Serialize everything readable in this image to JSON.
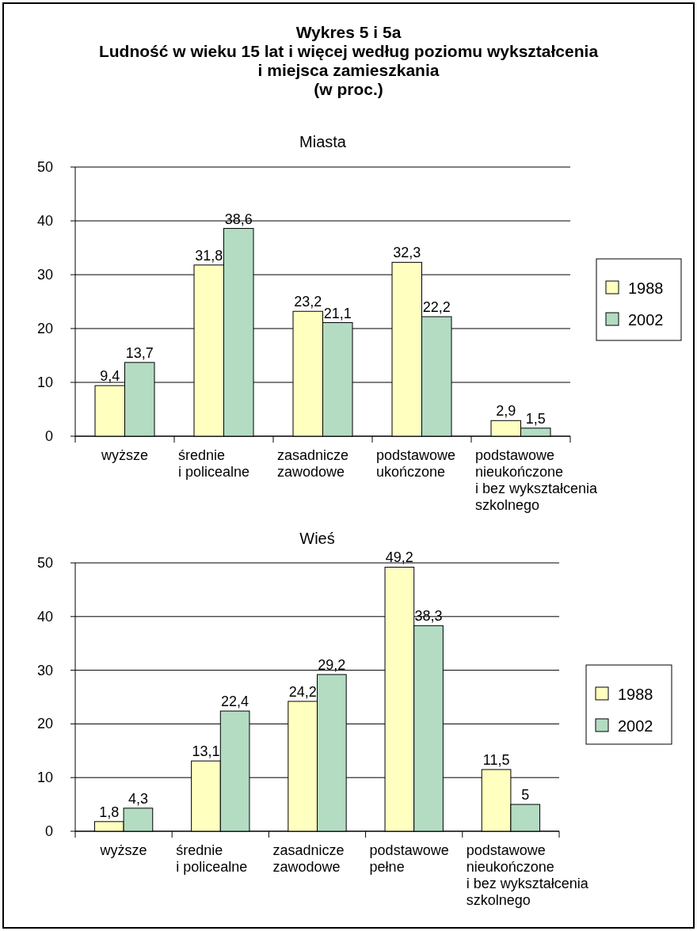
{
  "chart_data": [
    {
      "type": "bar",
      "title": "Wykres 5 i 5a\nLudność w wieku 15 lat i więcej według poziomu wykształcenia\ni miejsca zamieszkania\n(w proc.)",
      "subtitle": "Miasta",
      "categories": [
        "wyższe",
        "średnie\ni policealne",
        "zasadnicze\nzawodowe",
        "podstawowe\nukończone",
        "podstawowe\nnieukończone\ni bez wykształcenia\nszkolnego"
      ],
      "series": [
        {
          "name": "1988",
          "color": "#ffffc0",
          "values": [
            9.4,
            31.8,
            23.2,
            32.3,
            2.9
          ],
          "value_labels": [
            "9,4",
            "31,8",
            "23,2",
            "32,3",
            "2,9"
          ]
        },
        {
          "name": "2002",
          "color": "#b3dcc3",
          "values": [
            13.7,
            38.6,
            21.1,
            22.2,
            1.5
          ],
          "value_labels": [
            "13,7",
            "38,6",
            "21,1",
            "22,2",
            "1,5"
          ]
        }
      ],
      "ylim": [
        0,
        50
      ],
      "yticks": [
        0,
        10,
        20,
        30,
        40,
        50
      ],
      "grid": "y",
      "legend": "right"
    },
    {
      "type": "bar",
      "subtitle": "Wieś",
      "categories": [
        "wyższe",
        "średnie\ni policealne",
        "zasadnicze\nzawodowe",
        "podstawowe\npełne",
        "podstawowe\nnieukończone\ni bez wykształcenia\nszkolnego"
      ],
      "series": [
        {
          "name": "1988",
          "color": "#ffffc0",
          "values": [
            1.8,
            13.1,
            24.2,
            49.2,
            11.5
          ],
          "value_labels": [
            "1,8",
            "13,1",
            "24,2",
            "49,2",
            "11,5"
          ]
        },
        {
          "name": "2002",
          "color": "#b3dcc3",
          "values": [
            4.3,
            22.4,
            29.2,
            38.3,
            5
          ],
          "value_labels": [
            "4,3",
            "22,4",
            "29,2",
            "38,3",
            "5"
          ]
        }
      ],
      "ylim": [
        0,
        50
      ],
      "yticks": [
        0,
        10,
        20,
        30,
        40,
        50
      ],
      "grid": "y",
      "legend": "right"
    }
  ]
}
